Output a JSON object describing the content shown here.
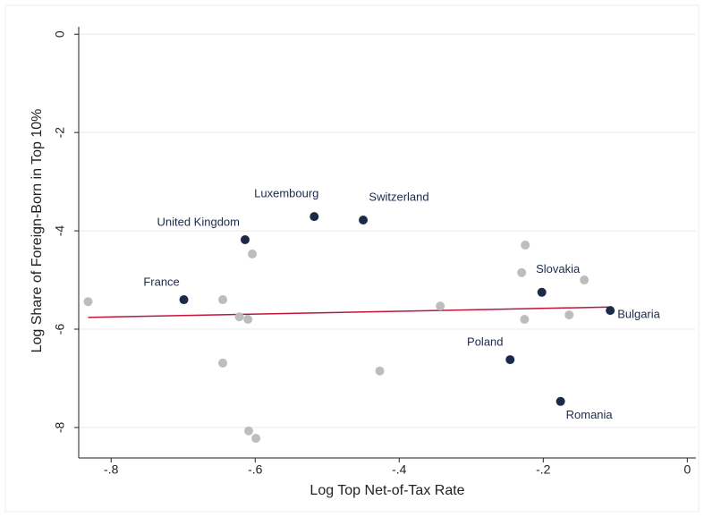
{
  "chart_data": {
    "type": "scatter",
    "xlabel": "Log Top Net-of-Tax Rate",
    "ylabel": "Log Share of Foreign-Born in Top 10%",
    "xlim": [
      -0.845,
      0.012
    ],
    "ylim": [
      -8.62,
      0.15
    ],
    "xticks": [
      {
        "value": -0.8,
        "label": "-.8"
      },
      {
        "value": -0.6,
        "label": "-.6"
      },
      {
        "value": -0.4,
        "label": "-.4"
      },
      {
        "value": -0.2,
        "label": "-.2"
      },
      0
    ],
    "yticks": [
      0,
      -2,
      -4,
      -6,
      -8
    ],
    "grid": true,
    "series": [
      {
        "color": "#bdbdbd",
        "x": [
          -0.832,
          -0.645,
          -0.622,
          -0.61,
          -0.604,
          -0.645,
          -0.609,
          -0.599,
          -0.427,
          -0.343,
          -0.225,
          -0.23,
          -0.226,
          -0.164,
          -0.143
        ],
        "values": [
          -5.44,
          -5.4,
          -5.75,
          -5.8,
          -4.47,
          -6.69,
          -8.07,
          -8.22,
          -6.85,
          -5.53,
          -4.29,
          -4.85,
          -5.8,
          -5.71,
          -5.0
        ]
      },
      {
        "color": "#1c2a4a",
        "x": [
          -0.699,
          -0.614,
          -0.518,
          -0.45,
          -0.202,
          -0.107,
          -0.246,
          -0.176
        ],
        "values": [
          -5.4,
          -4.18,
          -3.71,
          -3.78,
          -5.25,
          -5.62,
          -6.62,
          -7.47
        ],
        "labels": [
          "France",
          "United Kingdom",
          "Luxembourg",
          "Switzerland",
          "Slovakia",
          "Bulgaria",
          "Poland",
          "Romania"
        ]
      }
    ],
    "fit_line": {
      "color": "#c0143c",
      "x": [
        -0.832,
        -0.107
      ],
      "values": [
        -5.76,
        -5.55
      ]
    }
  }
}
